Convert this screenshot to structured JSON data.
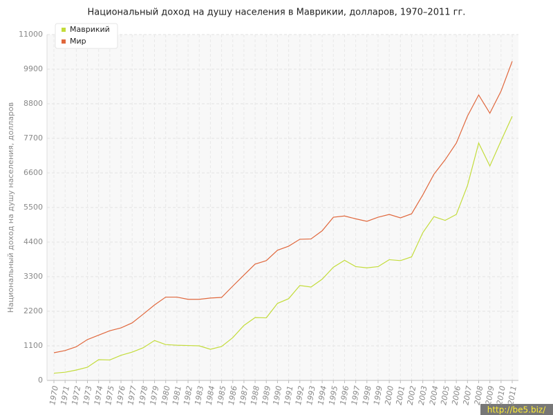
{
  "chart_data": {
    "type": "line",
    "title": "Национальный доход на душу населения в Маврикии, долларов, 1970–2011 гг.",
    "y_label": "Национальный доход на душу населения, долларов",
    "categories": [
      "1970",
      "1971",
      "1972",
      "1973",
      "1974",
      "1975",
      "1976",
      "1977",
      "1978",
      "1979",
      "1980",
      "1981",
      "1982",
      "1983",
      "1984",
      "1985",
      "1986",
      "1987",
      "1988",
      "1989",
      "1990",
      "1991",
      "1992",
      "1993",
      "1994",
      "1995",
      "1996",
      "1997",
      "1998",
      "1999",
      "2000",
      "2001",
      "2002",
      "2003",
      "2004",
      "2005",
      "2006",
      "2007",
      "2008",
      "2009",
      "2010",
      "2011"
    ],
    "series": [
      {
        "name": "Маврикий",
        "color": "#c3dc3a",
        "values": [
          230,
          260,
          330,
          420,
          660,
          650,
          800,
          900,
          1040,
          1270,
          1140,
          1120,
          1110,
          1100,
          990,
          1080,
          1360,
          1750,
          2000,
          1990,
          2450,
          2600,
          3020,
          2970,
          3220,
          3600,
          3820,
          3620,
          3580,
          3620,
          3840,
          3810,
          3930,
          4700,
          5210,
          5090,
          5280,
          6200,
          7550,
          6820,
          7620,
          8400
        ]
      },
      {
        "name": "Мир",
        "color": "#e0673c",
        "values": [
          880,
          950,
          1070,
          1300,
          1440,
          1580,
          1670,
          1830,
          2110,
          2400,
          2650,
          2650,
          2580,
          2580,
          2620,
          2640,
          3000,
          3350,
          3700,
          3810,
          4140,
          4270,
          4490,
          4500,
          4760,
          5190,
          5230,
          5140,
          5060,
          5190,
          5280,
          5170,
          5300,
          5900,
          6560,
          7020,
          7550,
          8410,
          9080,
          8500,
          9200,
          10150
        ]
      }
    ],
    "ylim": [
      0,
      11000
    ],
    "yticks": [
      0,
      1100,
      2200,
      3300,
      4400,
      5500,
      6600,
      7700,
      8800,
      9900,
      11000
    ],
    "grid": true,
    "legend": "top-left",
    "watermark": "http://be5.biz/"
  }
}
